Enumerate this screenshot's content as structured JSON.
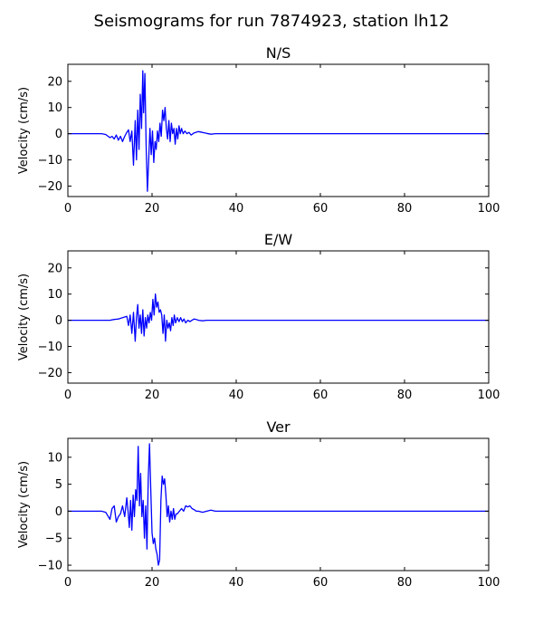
{
  "figure_title": "Seismograms for run 7874923, station lh12",
  "chart_data": [
    {
      "type": "line",
      "title": "N/S",
      "xlabel": "",
      "ylabel": "Velocity (cm/s)",
      "xlim": [
        0,
        100
      ],
      "ylim": [
        -24,
        26.5
      ],
      "xticks": [
        "0",
        "20",
        "40",
        "60",
        "80",
        "100"
      ],
      "yticks": [
        "20",
        "10",
        "0",
        "−10",
        "−20"
      ],
      "line_color": "#0000ff",
      "grid": false,
      "x": [
        0,
        8,
        9,
        10,
        10.5,
        11,
        11.5,
        12,
        12.5,
        13,
        13.5,
        14,
        14.4,
        14.8,
        15.2,
        15.6,
        16,
        16.3,
        16.6,
        16.9,
        17.2,
        17.5,
        17.8,
        18,
        18.3,
        18.6,
        18.9,
        19.2,
        19.5,
        19.8,
        20.1,
        20.4,
        20.7,
        21,
        21.3,
        21.6,
        21.9,
        22.2,
        22.5,
        22.8,
        23.1,
        23.4,
        23.7,
        24,
        24.3,
        24.6,
        24.9,
        25.2,
        25.5,
        25.8,
        26.1,
        26.4,
        26.7,
        27,
        27.4,
        27.8,
        28.3,
        28.8,
        29.3,
        30,
        31,
        32,
        33,
        34,
        35,
        40,
        50,
        60,
        70,
        80,
        90,
        100
      ],
      "values": [
        0,
        0,
        -0.3,
        -1.5,
        -1,
        -2,
        -0.5,
        -2.5,
        -1,
        -3,
        -1,
        0.5,
        1.5,
        -3,
        1,
        -12,
        5,
        -10,
        9,
        -6,
        15,
        2,
        24,
        8,
        23,
        -5,
        -22,
        -10,
        2,
        -8,
        1,
        -11,
        -3,
        -6,
        1,
        -3,
        4,
        -1,
        9,
        5,
        10,
        2,
        -2,
        5,
        -3,
        4,
        0,
        2,
        -4,
        2,
        -2,
        3,
        0,
        2,
        0,
        1,
        0,
        0.5,
        -0.5,
        0.3,
        0.8,
        0.5,
        0.1,
        -0.2,
        0,
        0,
        0,
        0,
        0,
        0,
        0,
        0
      ]
    },
    {
      "type": "line",
      "title": "E/W",
      "xlabel": "",
      "ylabel": "Velocity (cm/s)",
      "xlim": [
        0,
        100
      ],
      "ylim": [
        -24,
        26.5
      ],
      "xticks": [
        "0",
        "20",
        "40",
        "60",
        "80",
        "100"
      ],
      "yticks": [
        "20",
        "10",
        "0",
        "−10",
        "−20"
      ],
      "line_color": "#0000ff",
      "grid": false,
      "x": [
        0,
        10,
        11,
        12,
        13,
        14,
        14.4,
        14.8,
        15.2,
        15.6,
        16,
        16.3,
        16.6,
        16.9,
        17.2,
        17.5,
        17.8,
        18.1,
        18.4,
        18.7,
        19,
        19.3,
        19.6,
        19.9,
        20.2,
        20.5,
        20.8,
        21.1,
        21.4,
        21.7,
        22,
        22.3,
        22.6,
        22.9,
        23.2,
        23.5,
        23.8,
        24.1,
        24.4,
        24.7,
        25,
        25.3,
        25.6,
        26,
        26.4,
        26.8,
        27.2,
        27.6,
        28,
        28.5,
        29,
        29.5,
        30,
        30.5,
        31,
        32,
        33,
        35,
        40,
        50,
        60,
        70,
        80,
        90,
        100
      ],
      "values": [
        0,
        0,
        0.3,
        0.5,
        1,
        1.5,
        -2,
        2,
        -5,
        3,
        -8,
        1,
        6,
        -3,
        2,
        -5,
        4,
        -6,
        1,
        -3,
        2,
        -1,
        3,
        0,
        8,
        2,
        10,
        5,
        7,
        3,
        4,
        2,
        -5,
        2,
        -8,
        0,
        -3,
        -1,
        -4,
        1,
        -2,
        2,
        -1,
        1,
        -0.5,
        1,
        -0.5,
        0.5,
        -1,
        0,
        -0.5,
        0,
        0.5,
        0.3,
        0,
        -0.2,
        0,
        0,
        0,
        0,
        0,
        0,
        0,
        0,
        0
      ]
    },
    {
      "type": "line",
      "title": "Ver",
      "xlabel": "",
      "ylabel": "Velocity (cm/s)",
      "xlim": [
        0,
        100
      ],
      "ylim": [
        -11,
        13.5
      ],
      "xticks": [
        "0",
        "20",
        "40",
        "60",
        "80",
        "100"
      ],
      "yticks": [
        "10",
        "5",
        "0",
        "−5",
        "−10"
      ],
      "line_color": "#0000ff",
      "grid": false,
      "x": [
        0,
        8,
        9,
        10,
        10.5,
        11,
        11.5,
        12,
        12.5,
        13,
        13.5,
        14,
        14.3,
        14.6,
        14.9,
        15.2,
        15.5,
        15.8,
        16.1,
        16.4,
        16.7,
        17,
        17.3,
        17.6,
        17.9,
        18.2,
        18.5,
        18.8,
        19.1,
        19.4,
        19.7,
        20,
        20.3,
        20.6,
        20.9,
        21.2,
        21.5,
        21.8,
        22.1,
        22.4,
        22.7,
        23,
        23.3,
        23.6,
        23.9,
        24.2,
        24.5,
        24.8,
        25.1,
        25.4,
        25.7,
        26,
        26.5,
        27,
        27.5,
        28,
        28.5,
        29,
        29.5,
        30,
        30.5,
        31,
        32,
        33,
        34,
        35,
        37,
        40,
        50,
        60,
        70,
        80,
        90,
        100
      ],
      "values": [
        0,
        0,
        -0.2,
        -1.5,
        0.5,
        1,
        -2,
        -1,
        -0.5,
        1,
        -1,
        2.5,
        0,
        -3,
        2,
        -3.5,
        3,
        -1,
        4,
        2,
        12,
        1,
        7,
        -1,
        2,
        -5,
        1,
        -7,
        6,
        12.5,
        4,
        -4,
        -6,
        -5,
        -7,
        -8,
        -10,
        -9,
        2,
        6.5,
        5,
        6,
        3,
        -1,
        1,
        -2,
        0,
        -1.5,
        0.5,
        -1.5,
        -0.5,
        -0.5,
        0,
        0.5,
        0,
        1,
        0.8,
        1,
        0.5,
        0.3,
        0,
        0,
        -0.2,
        0,
        0.2,
        0,
        0,
        0,
        0,
        0,
        0,
        0,
        0,
        0
      ]
    }
  ]
}
